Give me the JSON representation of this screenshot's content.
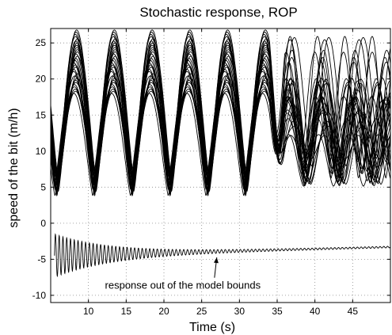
{
  "chart_data": {
    "type": "line",
    "title": "Stochastic response, ROP",
    "xlabel": "Time (s)",
    "ylabel": "speed of the bit (m/h)",
    "xlim": [
      5,
      50
    ],
    "ylim": [
      -11,
      27
    ],
    "xticks": [
      10,
      15,
      20,
      25,
      30,
      35,
      40,
      45
    ],
    "yticks": [
      -10,
      -5,
      0,
      5,
      10,
      15,
      20,
      25
    ],
    "grid": true,
    "grid_style": "dotted",
    "line_color": "#000000",
    "ensemble": {
      "description_count": 30,
      "stable_period_s": 5,
      "peaks_x": [
        8.3,
        13.2,
        18.1,
        23.0,
        28.0,
        33.0
      ],
      "peak_range": [
        18,
        26.8
      ],
      "trough_range": [
        3.8,
        6.0
      ],
      "late_peaks_x": [
        37.5,
        42.0,
        46.5
      ],
      "late_peak_range": [
        12,
        26.5
      ],
      "late_trough_range": [
        5.0,
        9.0
      ]
    },
    "divergent_series": {
      "start_x": 5.5,
      "initial_center": -4.5,
      "initial_amplitude": 3.0,
      "final_center": -3.3,
      "final_amplitude": 0.1,
      "period_s": 0.5
    },
    "annotation": {
      "text": "response out of the model bounds",
      "arrow_target": [
        27.0,
        -4.3
      ],
      "text_anchor": [
        22.5,
        -9.1
      ]
    }
  }
}
